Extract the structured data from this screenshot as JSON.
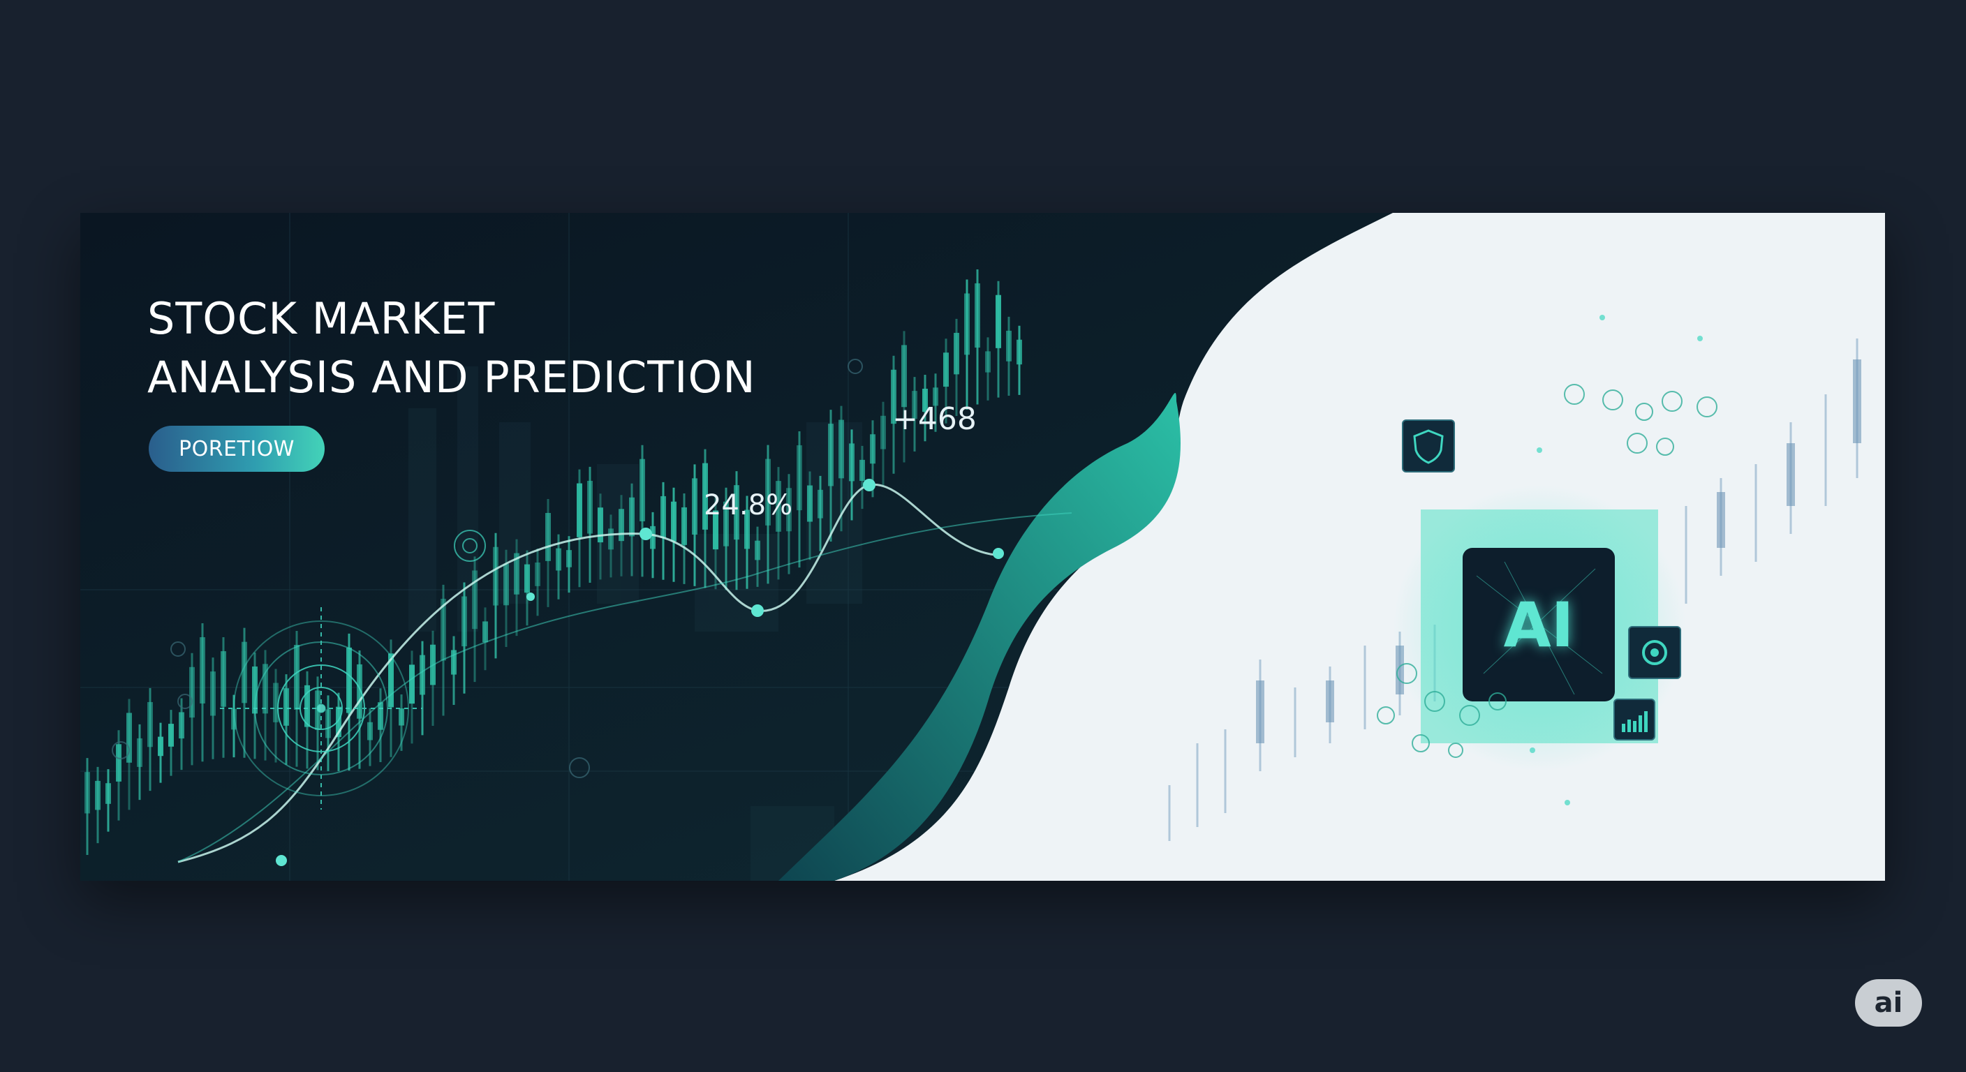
{
  "banner": {
    "title_line1": "STOCK MARKET",
    "title_line2": "ANALYSIS AND PREDICTION",
    "pill_label": "PORETIOW",
    "stat_gain": "+468",
    "stat_percent": "24.8%",
    "ai_chip_label": "AI",
    "colors": {
      "background": "#18212e",
      "banner_dark": "#0c1a26",
      "accent_teal": "#3fd6c0",
      "banner_light": "#eef3f6"
    }
  },
  "icons": {
    "target": "radar-target-icon",
    "chip": "ai-chip-icon",
    "shield": "shield-icon",
    "bar_chart": "bar-chart-icon",
    "gear": "gear-icon"
  },
  "watermark": {
    "label": "ai"
  }
}
